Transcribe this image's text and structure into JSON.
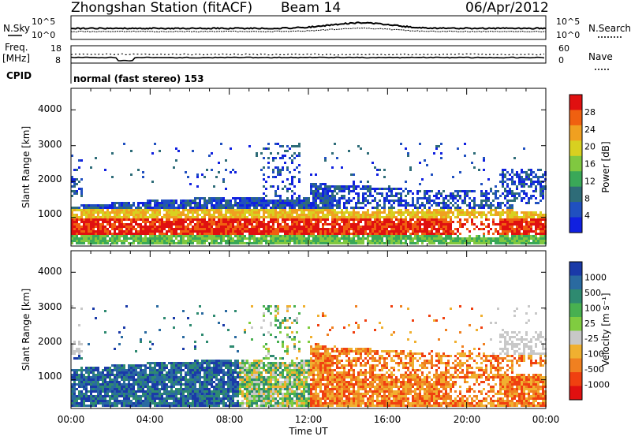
{
  "header": {
    "station": "Zhongshan Station (fitACF)",
    "beam": "Beam 14",
    "date": "06/Apr/2012"
  },
  "top_panels": {
    "nsky_label": "N.Sky",
    "nsearch_label": "N.Search",
    "nsky_ticks": [
      "10^5",
      "10^0"
    ],
    "nsearch_ticks": [
      "10^5",
      "10^0"
    ],
    "freq_label_line1": "Freq.",
    "freq_label_line2": "[MHz]",
    "freq_ticks": [
      "18",
      "8"
    ],
    "nave_label": "Nave",
    "nave_ticks": [
      "60",
      "0"
    ],
    "cpid_label": "CPID",
    "cpid_text": "normal (fast stereo) 153"
  },
  "chart_data": [
    {
      "type": "heatmap",
      "name": "power",
      "ylabel": "Slant Range [km]",
      "ylim": [
        200,
        4600
      ],
      "yticks": [
        "1000",
        "2000",
        "3000",
        "4000"
      ],
      "xlim": [
        0,
        24
      ],
      "colorbar_label": "Power [dB]",
      "colorbar_ticks": [
        "4",
        "8",
        "12",
        "16",
        "20",
        "24",
        "28"
      ],
      "colors": [
        "#1020e0",
        "#2050c0",
        "#2e6c78",
        "#3aa858",
        "#80c840",
        "#d8d020",
        "#f0a020",
        "#f06010",
        "#e01010"
      ]
    },
    {
      "type": "heatmap",
      "name": "velocity",
      "ylabel": "Slant Range [km]",
      "ylim": [
        200,
        4600
      ],
      "yticks": [
        "1000",
        "2000",
        "3000",
        "4000"
      ],
      "xlim": [
        0,
        24
      ],
      "colorbar_label": "Velocity [m s⁻¹]",
      "colorbar_ticks": [
        "1000",
        "500",
        "100",
        "25",
        "-25",
        "-100",
        "-500",
        "-1000"
      ],
      "colors": [
        "#1a3aa8",
        "#2a6aa0",
        "#2e8a70",
        "#48b050",
        "#80cc40",
        "#c8c8c8",
        "#f0b030",
        "#f08020",
        "#f04010",
        "#e01010"
      ]
    }
  ],
  "xaxis": {
    "ticks": [
      "00:00",
      "04:00",
      "08:00",
      "12:00",
      "16:00",
      "20:00",
      "00:00"
    ],
    "label": "Time UT"
  }
}
